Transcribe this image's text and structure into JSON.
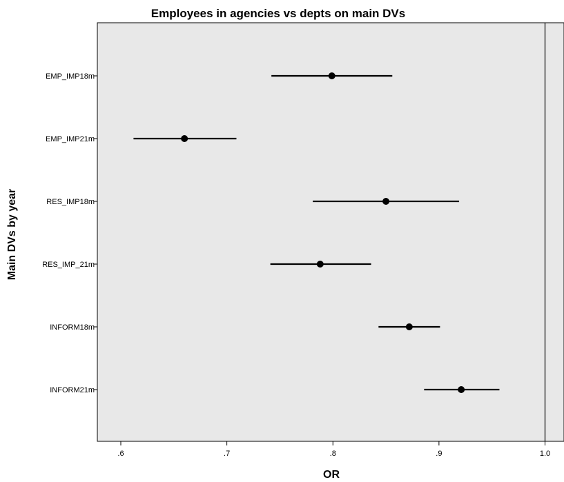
{
  "chart_data": {
    "type": "forest",
    "title": "Employees in agencies vs depts on main DVs",
    "xlabel": "OR",
    "ylabel": "Main DVs by year",
    "xlim": [
      0.585,
      1.0
    ],
    "xticks": [
      {
        "value": 0.6,
        "label": ".6"
      },
      {
        "value": 0.7,
        "label": ".7"
      },
      {
        "value": 0.8,
        "label": ".8"
      },
      {
        "value": 0.9,
        "label": ".9"
      },
      {
        "value": 1.0,
        "label": "1.0"
      }
    ],
    "reference_line": 1.0,
    "grid": false,
    "series": [
      {
        "category": "EMP_IMP18m",
        "or": 0.799,
        "lower": 0.742,
        "upper": 0.856
      },
      {
        "category": "EMP_IMP21m",
        "or": 0.66,
        "lower": 0.612,
        "upper": 0.709
      },
      {
        "category": "RES_IMP18m",
        "or": 0.85,
        "lower": 0.781,
        "upper": 0.919
      },
      {
        "category": "RES_IMP_21m",
        "or": 0.788,
        "lower": 0.741,
        "upper": 0.836
      },
      {
        "category": "INFORM18m",
        "or": 0.872,
        "lower": 0.843,
        "upper": 0.901
      },
      {
        "category": "INFORM21m",
        "or": 0.921,
        "lower": 0.886,
        "upper": 0.957
      }
    ]
  },
  "colors": {
    "plot_background": "#e8e8e8",
    "marker": "#000000",
    "line": "#000000"
  }
}
